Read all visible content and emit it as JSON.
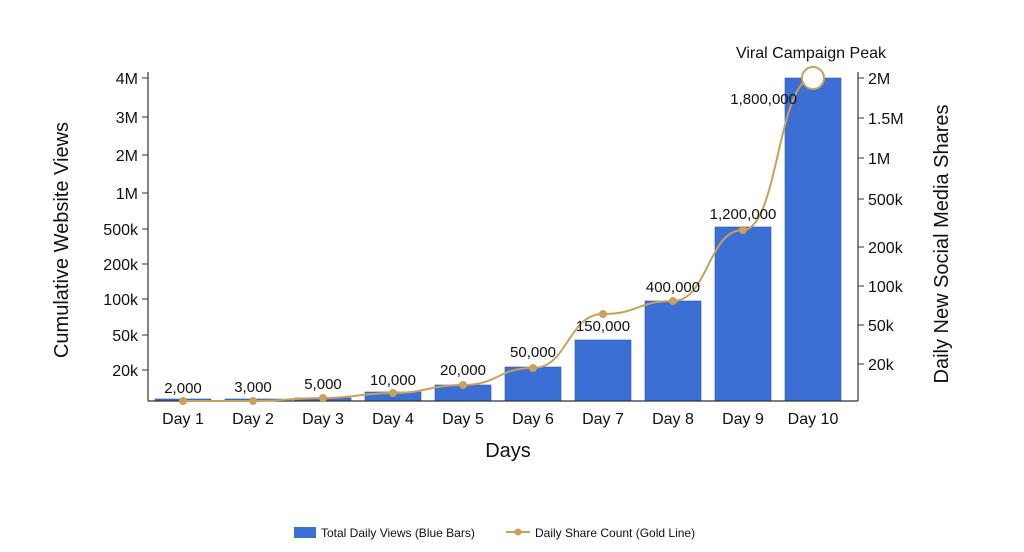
{
  "chart_data": {
    "type": "bar",
    "categories": [
      "Day 1",
      "Day 2",
      "Day 3",
      "Day 4",
      "Day 5",
      "Day 6",
      "Day 7",
      "Day 8",
      "Day 9",
      "Day 10"
    ],
    "xlabel": "Days",
    "ylabel": "Cumulative Website Views",
    "y2label": "Daily New Social Media Shares",
    "y_tick_labels": [
      "20k",
      "50k",
      "100k",
      "200k",
      "500k",
      "1M",
      "2M",
      "3M",
      "4M"
    ],
    "y2_tick_labels": [
      "20k",
      "50k",
      "100k",
      "200k",
      "500k",
      "1M",
      "1.5M",
      "2M"
    ],
    "series": [
      {
        "name": "Total Daily Views (Blue Bars)",
        "type": "bar",
        "axis": "left",
        "values": [
          1000,
          2000,
          3000,
          5000,
          10000,
          25000,
          60000,
          100000,
          500000,
          4000000
        ]
      },
      {
        "name": "Daily Share Count (Gold Line)",
        "type": "line",
        "axis": "right",
        "values": [
          2000,
          3000,
          5000,
          10000,
          20000,
          50000,
          150000,
          400000,
          1200000,
          1800000
        ],
        "data_labels": [
          "2,000",
          "3,000",
          "5,000",
          "10,000",
          "20,000",
          "50,000",
          "150,000",
          "400,000",
          "1,200,000",
          "1,800,000"
        ]
      }
    ],
    "annotations": [
      {
        "text": "Viral Campaign Peak",
        "category": "Day 10"
      }
    ],
    "legend": "bottom",
    "grid": false,
    "colors": {
      "bars": "#3b6fd4",
      "bar_edge": "#2a56b0",
      "line": "#c9a15a",
      "axis": "#333333"
    }
  }
}
